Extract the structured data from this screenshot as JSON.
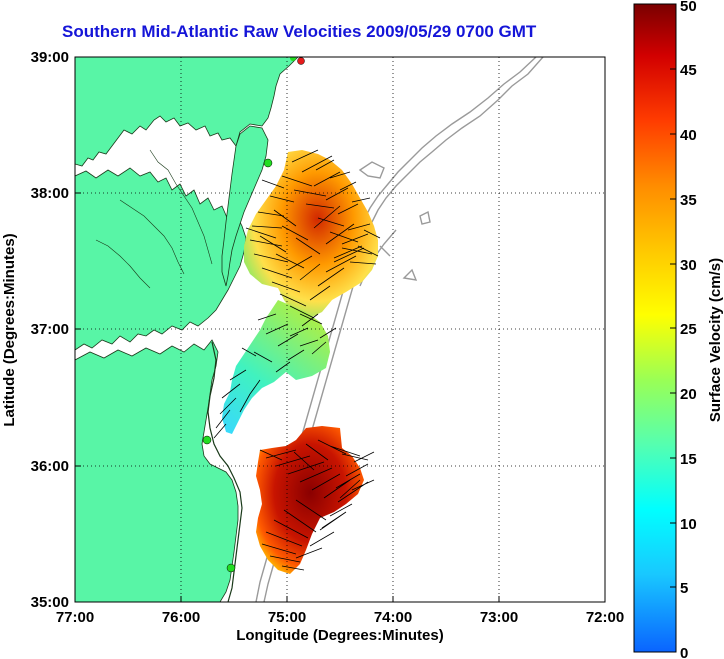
{
  "title": "Southern Mid-Atlantic Raw Velocities 2009/05/29 0700 GMT",
  "axes": {
    "xlabel": "Longitude (Degrees:Minutes)",
    "ylabel": "Latitude (Degrees:Minutes)",
    "xticks": [
      "77:00",
      "76:00",
      "75:00",
      "74:00",
      "73:00",
      "72:00"
    ],
    "yticks": [
      "39:00",
      "38:00",
      "37:00",
      "36:00",
      "35:00"
    ]
  },
  "colorbar": {
    "label": "Surface Velocity (cm/s)",
    "ticks": [
      "50",
      "45",
      "40",
      "35",
      "30",
      "25",
      "20",
      "15",
      "10",
      "5",
      "0"
    ],
    "range_cm_s": [
      0,
      50
    ]
  },
  "colors": {
    "land": "#58f5a6",
    "title": "#1515d8",
    "bathymetry": "#9a9a9a",
    "station_green": "#22dd22",
    "station_red": "#e51b1b"
  }
}
